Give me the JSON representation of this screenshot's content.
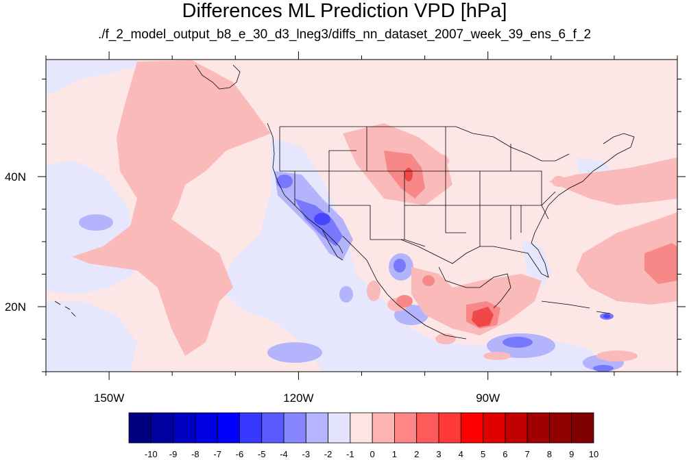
{
  "title": "Differences ML Prediction VPD [hPa]",
  "subtitle": "./f_2_model_output_b8_e_30_d3_lneg3/diffs_nn_dataset_2007_week_39_ens_6_f_2",
  "map": {
    "lon_range": [
      -160,
      -60
    ],
    "lat_range": [
      10,
      58
    ],
    "lon_ticks": [
      {
        "value": -150,
        "label": "150W"
      },
      {
        "value": -120,
        "label": "120W"
      },
      {
        "value": -90,
        "label": "90W"
      }
    ],
    "lat_ticks": [
      {
        "value": 40,
        "label": "40N"
      },
      {
        "value": 20,
        "label": "20N"
      }
    ],
    "background_value_color": "#fde6e6"
  },
  "colorbar": {
    "levels": [
      "-10",
      "-9",
      "-8",
      "-7",
      "-6",
      "-5",
      "-4",
      "-3",
      "-2",
      "-1",
      "0",
      "1",
      "2",
      "3",
      "4",
      "5",
      "6",
      "7",
      "8",
      "9",
      "10"
    ],
    "colors": [
      "#000080",
      "#0000a0",
      "#0000c0",
      "#0000e0",
      "#0000ff",
      "#3838ff",
      "#5a5aff",
      "#8686ff",
      "#b4b4ff",
      "#e4e4ff",
      "#ffe4e4",
      "#ffb4b4",
      "#ff8686",
      "#ff5a5a",
      "#ff3838",
      "#ff0000",
      "#e00000",
      "#c00000",
      "#a00000",
      "#900000",
      "#800000"
    ]
  }
}
